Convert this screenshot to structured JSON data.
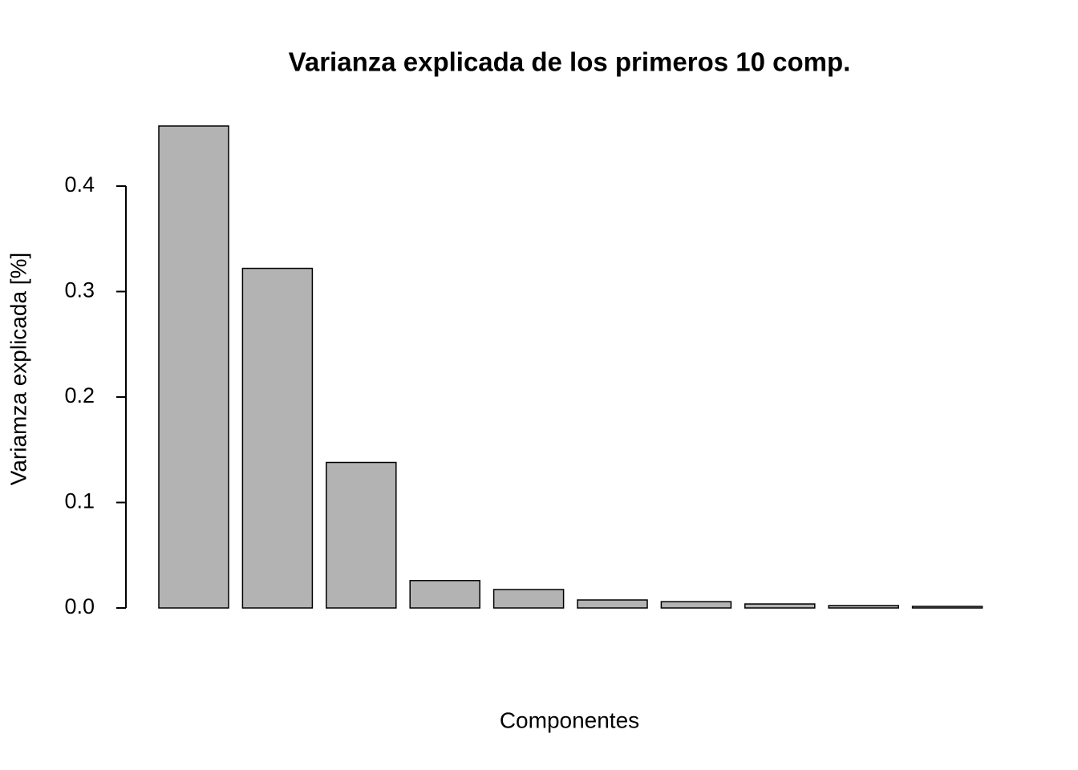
{
  "chart_data": {
    "type": "bar",
    "title": "Varianza explicada de los primeros 10 comp.",
    "x_label": "Componentes",
    "y_label": "Variamza explicada [%]",
    "categories": [
      null,
      null,
      null,
      null,
      null,
      null,
      null,
      null,
      null,
      null
    ],
    "values": [
      0.457,
      0.322,
      0.138,
      0.026,
      0.0175,
      0.0076,
      0.006,
      0.0038,
      0.0023,
      0.0015
    ],
    "color": "#b3b3b3",
    "ylim": [
      0,
      0.475
    ],
    "yticks": [
      {
        "value": 0,
        "label": "0.0"
      },
      0.1,
      0.2,
      0.3,
      0.4
    ]
  }
}
